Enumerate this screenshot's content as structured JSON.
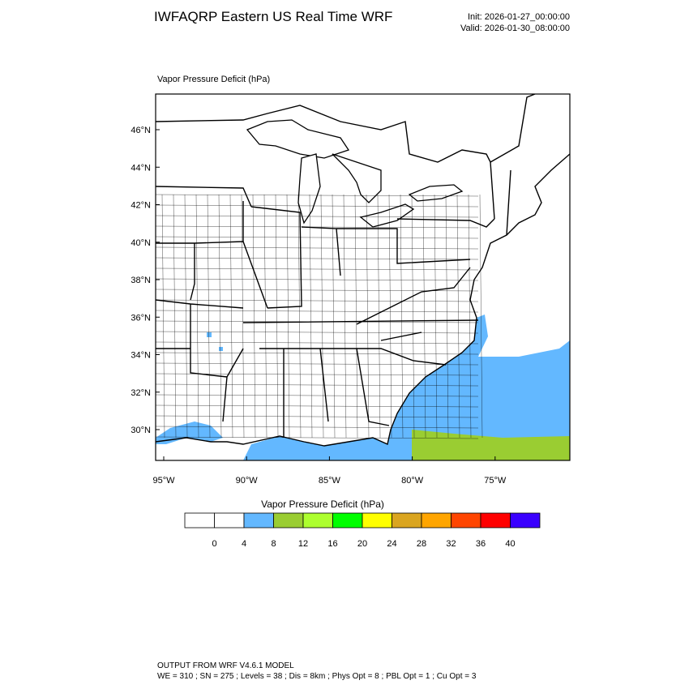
{
  "header": {
    "title": "IWFAQRP Eastern US Real Time WRF",
    "init": "Init: 2026-01-27_00:00:00",
    "valid": "Valid: 2026-01-30_08:00:00"
  },
  "map": {
    "title": "Vapor Pressure Deficit   (hPa)",
    "lat_labels": [
      "46°N",
      "44°N",
      "42°N",
      "40°N",
      "38°N",
      "36°N",
      "34°N",
      "32°N",
      "30°N"
    ],
    "lon_labels": [
      "95°W",
      "90°W",
      "85°W",
      "80°W",
      "75°W"
    ]
  },
  "colorbar": {
    "title": "Vapor Pressure Deficit  (hPa)",
    "levels": [
      0,
      4,
      8,
      12,
      16,
      20,
      24,
      28,
      32,
      36,
      40
    ],
    "colors": [
      "#ffffff",
      "#ffffff",
      "#63b8ff",
      "#9acd32",
      "#adff2f",
      "#00ff00",
      "#ffff00",
      "#daa520",
      "#ffa500",
      "#ff4500",
      "#ff0000",
      "#3a00ff"
    ]
  },
  "footer": {
    "line1": "OUTPUT FROM WRF V4.6.1 MODEL",
    "line2": "WE = 310 ; SN = 275 ; Levels = 38 ; Dis = 8km ; Phys Opt = 8 ; PBL Opt = 1 ; Cu Opt = 3"
  }
}
